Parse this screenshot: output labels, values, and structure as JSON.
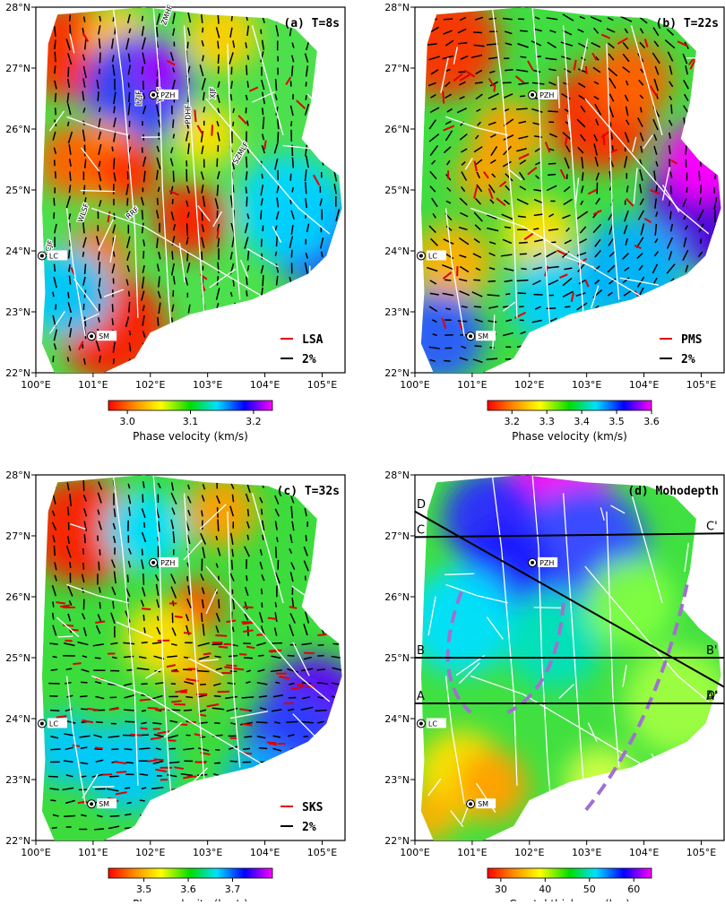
{
  "panels": [
    {
      "id": "a",
      "title": "(a) T=8s",
      "legend_red": "LSA",
      "legend_black": "2%",
      "colorbar": {
        "ticks": [
          "3.0",
          "3.1",
          "3.2"
        ],
        "label": "Phase velocity (km/s)",
        "range": [
          2.97,
          3.23
        ]
      },
      "fault_labels": [
        "ZMHF",
        "YMF",
        "LZJF",
        "PDHF",
        "XJF",
        "SZMLF",
        "WLSF",
        "RRF",
        "LCJF"
      ],
      "cities": [
        "PZH",
        "LC",
        "SM"
      ]
    },
    {
      "id": "b",
      "title": "(b) T=22s",
      "legend_red": "PMS",
      "legend_black": "2%",
      "colorbar": {
        "ticks": [
          "3.2",
          "3.3",
          "3.4",
          "3.5",
          "3.6"
        ],
        "label": "Phase velocity (km/s)",
        "range": [
          3.13,
          3.6
        ]
      },
      "cities": [
        "PZH",
        "LC",
        "SM"
      ]
    },
    {
      "id": "c",
      "title": "(c) T=32s",
      "legend_red": "SKS",
      "legend_black": "2%",
      "colorbar": {
        "ticks": [
          "3.5",
          "3.6",
          "3.7"
        ],
        "label": "Phase velocity (km/s)",
        "range": [
          3.42,
          3.79
        ]
      },
      "cities": [
        "PZH",
        "LC",
        "SM"
      ]
    },
    {
      "id": "d",
      "title": "(d) Mohodepth",
      "colorbar": {
        "ticks": [
          "30",
          "40",
          "50",
          "60"
        ],
        "label": "Crustal thickness (km)",
        "range": [
          27,
          64
        ]
      },
      "profiles": [
        {
          "start": "A",
          "end": "A'"
        },
        {
          "start": "B",
          "end": "B'"
        },
        {
          "start": "C",
          "end": "C'"
        },
        {
          "start": "D",
          "end": "D'"
        }
      ],
      "cities": [
        "PZH",
        "LC",
        "SM"
      ]
    }
  ],
  "axes": {
    "lat_ticks": [
      "22°N",
      "23°N",
      "24°N",
      "25°N",
      "26°N",
      "27°N",
      "28°N"
    ],
    "lon_ticks": [
      "100°E",
      "101°E",
      "102°E",
      "103°E",
      "104°E",
      "105°E"
    ]
  },
  "colors": {
    "rainbow": [
      "#ff0000",
      "#ff8c00",
      "#ffff00",
      "#00dd00",
      "#00e0ff",
      "#0000ff",
      "#ff00ff"
    ],
    "moho_purple_dash": "#a070d0",
    "anisotropy_red": "#e00000"
  }
}
